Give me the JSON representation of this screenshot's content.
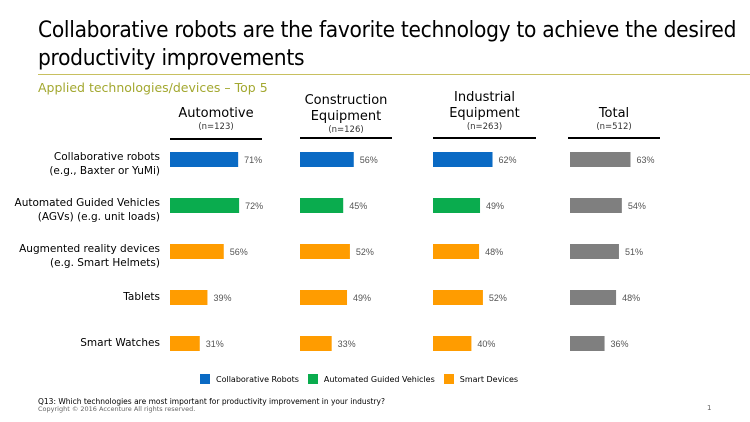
{
  "title": "Collaborative robots are the favorite technology to achieve the desired productivity improvements",
  "subtitle": "Applied technologies/devices – Top 5",
  "colors": {
    "collaborative_robots": "#0a6ac4",
    "agv": "#0aac4e",
    "smart_devices": "#ff9c00",
    "total": "#7f7f7f",
    "subtitle": "#a3a830"
  },
  "columns": [
    {
      "name": "Automotive",
      "n": "(n=123)"
    },
    {
      "name": "Construction Equipment",
      "n": "(n=126)"
    },
    {
      "name": "Industrial Equipment",
      "n": "(n=263)"
    },
    {
      "name": "Total",
      "n": "(n=512)"
    }
  ],
  "rows": [
    {
      "label_line1": "Collaborative robots",
      "label_line2": "(e.g., Baxter or YuMi)"
    },
    {
      "label_line1": "Automated Guided Vehicles",
      "label_line2": "(AGVs) (e.g. unit loads)"
    },
    {
      "label_line1": "Augmented reality devices",
      "label_line2": "(e.g. Smart Helmets)"
    },
    {
      "label_line1": "Tablets",
      "label_line2": ""
    },
    {
      "label_line1": "Smart Watches",
      "label_line2": ""
    }
  ],
  "legend": [
    {
      "label": "Collaborative Robots",
      "color": "#0a6ac4"
    },
    {
      "label": "Automated Guided Vehicles",
      "color": "#0aac4e"
    },
    {
      "label": "Smart Devices",
      "color": "#ff9c00"
    }
  ],
  "footnote": "Q13: Which technologies are most important for productivity improvement  in your industry?",
  "copyright": "Copyright © 2016 Accenture  All rights reserved.",
  "page_number": "1",
  "chart_data": {
    "type": "bar",
    "orientation": "horizontal",
    "title": "Applied technologies/devices – Top 5",
    "categories": [
      "Collaborative robots (e.g., Baxter or YuMi)",
      "Automated Guided Vehicles (AGVs) (e.g. unit loads)",
      "Augmented reality devices (e.g. Smart Helmets)",
      "Tablets",
      "Smart Watches"
    ],
    "category_groups": [
      "Collaborative Robots",
      "Automated Guided Vehicles",
      "Smart Devices",
      "Smart Devices",
      "Smart Devices"
    ],
    "series": [
      {
        "name": "Automotive (n=123)",
        "values": [
          71,
          72,
          56,
          39,
          31
        ]
      },
      {
        "name": "Construction Equipment (n=126)",
        "values": [
          56,
          45,
          52,
          49,
          33
        ]
      },
      {
        "name": "Industrial Equipment (n=263)",
        "values": [
          62,
          49,
          48,
          52,
          40
        ]
      },
      {
        "name": "Total (n=512)",
        "values": [
          63,
          54,
          51,
          48,
          36
        ]
      }
    ],
    "unit": "%",
    "xlim": [
      0,
      100
    ],
    "legend": [
      "Collaborative Robots",
      "Automated Guided Vehicles",
      "Smart Devices"
    ],
    "legend_position": "bottom",
    "grid": false
  }
}
